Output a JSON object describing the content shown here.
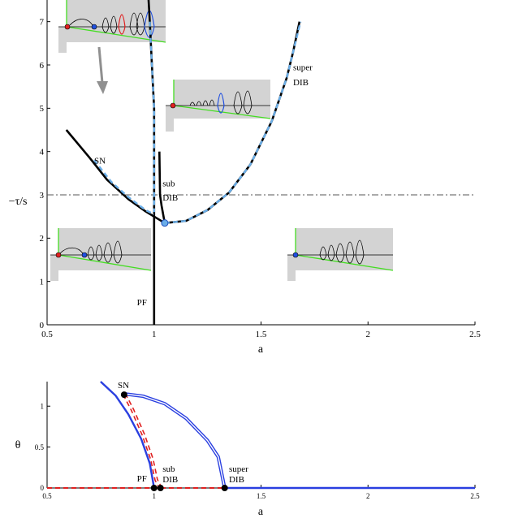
{
  "chart_data": [
    {
      "type": "line",
      "xlabel": "a",
      "ylabel": "−τ/s",
      "xlim": [
        0.5,
        2.5
      ],
      "ylim": [
        0,
        7.5
      ],
      "xticks": [
        "0.5",
        "1",
        "1.5",
        "2",
        "2.5"
      ],
      "yticks": [
        "0",
        "1",
        "2",
        "3",
        "4",
        "5",
        "6",
        "7"
      ],
      "reference_line": {
        "y": 3,
        "style": "dash-dot"
      },
      "series": [
        {
          "style": "black-solid",
          "points": [
            [
              0.59,
              4.5
            ],
            [
              0.7,
              3.85
            ],
            [
              0.78,
              3.35
            ],
            [
              0.88,
              2.9
            ],
            [
              0.96,
              2.62
            ],
            [
              1.0,
              2.5
            ]
          ]
        },
        {
          "style": "black-solid",
          "points": [
            [
              0.97,
              7.9
            ],
            [
              0.98,
              7.0
            ],
            [
              0.99,
              6.0
            ],
            [
              1.0,
              5.0
            ],
            [
              1.0,
              3.5
            ],
            [
              1.0,
              2.5
            ],
            [
              1.0,
              0.0
            ]
          ]
        },
        {
          "style": "black-solid",
          "points": [
            [
              1.025,
              4.0
            ],
            [
              1.028,
              3.0
            ],
            [
              1.035,
              2.75
            ],
            [
              1.05,
              2.35
            ]
          ]
        },
        {
          "style": "black-solid",
          "points": [
            [
              1.0,
              2.5
            ],
            [
              1.05,
              2.35
            ],
            [
              1.15,
              2.4
            ],
            [
              1.25,
              2.65
            ],
            [
              1.35,
              3.05
            ],
            [
              1.45,
              3.7
            ],
            [
              1.55,
              4.7
            ],
            [
              1.62,
              5.7
            ],
            [
              1.65,
              6.3
            ],
            [
              1.68,
              7.0
            ]
          ]
        },
        {
          "style": "light-blue-dashed",
          "points": [
            [
              0.72,
              3.8
            ],
            [
              0.8,
              3.3
            ],
            [
              0.88,
              2.95
            ],
            [
              0.96,
              2.65
            ],
            [
              1.0,
              2.55
            ]
          ]
        },
        {
          "style": "light-blue-dashed",
          "points": [
            [
              0.98,
              7.0
            ],
            [
              0.99,
              6.0
            ],
            [
              1.0,
              5.0
            ],
            [
              1.0,
              3.5
            ],
            [
              1.0,
              2.6
            ]
          ]
        },
        {
          "style": "light-blue-dashed",
          "points": [
            [
              1.05,
              2.35
            ],
            [
              1.15,
              2.4
            ],
            [
              1.25,
              2.65
            ],
            [
              1.35,
              3.05
            ],
            [
              1.45,
              3.7
            ],
            [
              1.55,
              4.7
            ],
            [
              1.62,
              5.7
            ],
            [
              1.65,
              6.3
            ],
            [
              1.685,
              7.0
            ]
          ]
        }
      ],
      "markers": [
        {
          "x": 1.05,
          "y": 2.35
        }
      ],
      "annotations": [
        {
          "text": "SN",
          "x": 0.72,
          "y": 3.72
        },
        {
          "text": "sub",
          "x": 1.04,
          "y": 3.2
        },
        {
          "text": "DIB",
          "x": 1.04,
          "y": 2.87
        },
        {
          "text": "super",
          "x": 1.65,
          "y": 5.88
        },
        {
          "text": "DIB",
          "x": 1.65,
          "y": 5.53
        },
        {
          "text": "PF",
          "x": 0.92,
          "y": 0.45
        }
      ]
    },
    {
      "type": "line",
      "xlabel": "a",
      "ylabel": "θ",
      "xlim": [
        0.5,
        2.5
      ],
      "ylim": [
        0,
        1.3
      ],
      "xticks": [
        "0.5",
        "1",
        "1.5",
        "2",
        "2.5"
      ],
      "yticks": [
        "0",
        "0.5",
        "1"
      ],
      "series": [
        {
          "style": "blue-solid",
          "points": [
            [
              0.75,
              1.3
            ],
            [
              0.82,
              1.13
            ],
            [
              0.88,
              0.9
            ],
            [
              0.94,
              0.6
            ],
            [
              0.98,
              0.3
            ],
            [
              1.0,
              0.0
            ]
          ]
        },
        {
          "style": "blue-double",
          "points": [
            [
              0.86,
              1.15
            ],
            [
              0.95,
              1.12
            ],
            [
              1.05,
              1.03
            ],
            [
              1.15,
              0.85
            ],
            [
              1.25,
              0.58
            ],
            [
              1.3,
              0.38
            ],
            [
              1.33,
              0.0
            ]
          ]
        },
        {
          "style": "red-dashed-double",
          "points": [
            [
              0.86,
              1.15
            ],
            [
              0.9,
              0.95
            ],
            [
              0.95,
              0.65
            ],
            [
              0.99,
              0.35
            ],
            [
              1.01,
              0.1
            ],
            [
              1.03,
              0.0
            ]
          ]
        },
        {
          "style": "red-dashed",
          "points": [
            [
              0.5,
              0.0
            ],
            [
              1.33,
              0.0
            ]
          ]
        },
        {
          "style": "blue-solid",
          "points": [
            [
              1.33,
              0.0
            ],
            [
              2.5,
              0.0
            ]
          ]
        }
      ],
      "markers": [
        {
          "x": 0.86,
          "y": 1.14
        },
        {
          "x": 1.0,
          "y": 0.0
        },
        {
          "x": 1.03,
          "y": 0.0
        },
        {
          "x": 1.33,
          "y": 0.0
        }
      ],
      "annotations": [
        {
          "text": "SN",
          "x": 0.83,
          "y": 1.22
        },
        {
          "text": "PF",
          "x": 0.92,
          "y": 0.08
        },
        {
          "text": "sub",
          "x": 1.04,
          "y": 0.2
        },
        {
          "text": "DIB",
          "x": 1.04,
          "y": 0.07
        },
        {
          "text": "super",
          "x": 1.35,
          "y": 0.2
        },
        {
          "text": "DIB",
          "x": 1.35,
          "y": 0.07
        }
      ]
    }
  ]
}
